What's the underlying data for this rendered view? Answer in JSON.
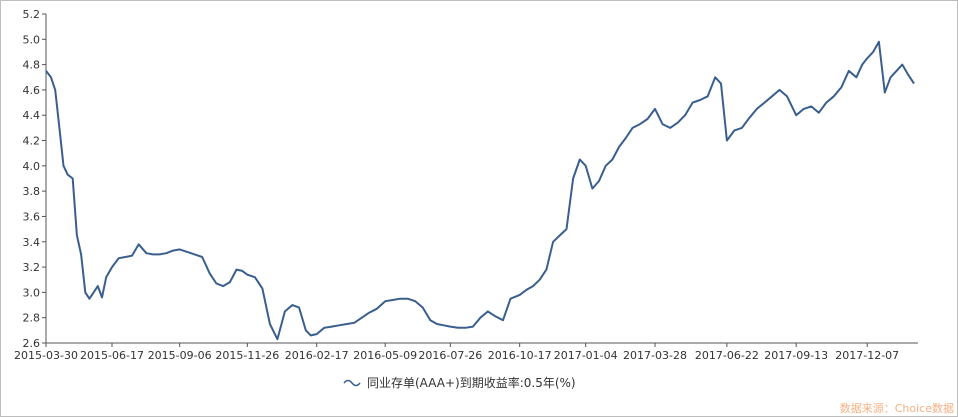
{
  "chart_data": {
    "type": "line",
    "title": "",
    "xlabel": "",
    "ylabel": "",
    "ylim": [
      2.6,
      5.2
    ],
    "y_ticks": [
      "2.6",
      "2.8",
      "3.0",
      "3.2",
      "3.4",
      "3.6",
      "3.8",
      "4.0",
      "4.2",
      "4.4",
      "4.6",
      "4.8",
      "5.0",
      "5.2"
    ],
    "x_tick_labels": [
      "2015-03-30",
      "2015-06-17",
      "2015-09-06",
      "2015-11-26",
      "2016-02-17",
      "2016-05-09",
      "2016-07-26",
      "2016-10-17",
      "2017-01-04",
      "2017-03-28",
      "2017-06-22",
      "2017-09-13",
      "2017-12-07"
    ],
    "grid": false,
    "legend_position": "bottom-center",
    "series": [
      {
        "name": "同业存单(AAA+)到期收益率:0.5年(%)",
        "color": "#3a5f8f",
        "x": [
          "2015-03-30",
          "2015-04-05",
          "2015-04-10",
          "2015-04-15",
          "2015-04-20",
          "2015-04-25",
          "2015-05-01",
          "2015-05-06",
          "2015-05-11",
          "2015-05-16",
          "2015-05-21",
          "2015-05-26",
          "2015-05-31",
          "2015-06-05",
          "2015-06-10",
          "2015-06-17",
          "2015-06-25",
          "2015-07-03",
          "2015-07-11",
          "2015-07-19",
          "2015-07-28",
          "2015-08-05",
          "2015-08-13",
          "2015-08-21",
          "2015-08-29",
          "2015-09-06",
          "2015-09-15",
          "2015-09-24",
          "2015-10-03",
          "2015-10-12",
          "2015-10-20",
          "2015-10-28",
          "2015-11-05",
          "2015-11-13",
          "2015-11-20",
          "2015-11-26",
          "2015-12-05",
          "2015-12-14",
          "2015-12-23",
          "2016-01-01",
          "2016-01-10",
          "2016-01-19",
          "2016-01-27",
          "2016-02-04",
          "2016-02-10",
          "2016-02-17",
          "2016-02-26",
          "2016-03-06",
          "2016-03-15",
          "2016-03-24",
          "2016-04-02",
          "2016-04-11",
          "2016-04-20",
          "2016-04-29",
          "2016-05-09",
          "2016-05-18",
          "2016-05-27",
          "2016-06-05",
          "2016-06-14",
          "2016-06-23",
          "2016-07-02",
          "2016-07-10",
          "2016-07-18",
          "2016-07-26",
          "2016-08-04",
          "2016-08-13",
          "2016-08-22",
          "2016-08-31",
          "2016-09-09",
          "2016-09-18",
          "2016-09-27",
          "2016-10-06",
          "2016-10-17",
          "2016-10-25",
          "2016-11-02",
          "2016-11-10",
          "2016-11-18",
          "2016-11-26",
          "2016-12-04",
          "2016-12-12",
          "2016-12-20",
          "2016-12-28",
          "2017-01-04",
          "2017-01-12",
          "2017-01-20",
          "2017-01-28",
          "2017-02-05",
          "2017-02-13",
          "2017-02-21",
          "2017-03-01",
          "2017-03-10",
          "2017-03-19",
          "2017-03-28",
          "2017-04-06",
          "2017-04-15",
          "2017-04-24",
          "2017-05-03",
          "2017-05-12",
          "2017-05-21",
          "2017-05-30",
          "2017-06-08",
          "2017-06-15",
          "2017-06-22",
          "2017-07-01",
          "2017-07-10",
          "2017-07-19",
          "2017-07-28",
          "2017-08-06",
          "2017-08-15",
          "2017-08-24",
          "2017-09-02",
          "2017-09-13",
          "2017-09-22",
          "2017-10-01",
          "2017-10-10",
          "2017-10-19",
          "2017-10-28",
          "2017-11-06",
          "2017-11-15",
          "2017-11-24",
          "2017-12-01",
          "2017-12-07",
          "2017-12-14",
          "2017-12-21",
          "2017-12-28",
          "2018-01-04",
          "2018-01-11",
          "2018-01-18",
          "2018-01-25",
          "2018-02-01"
        ],
        "values": [
          4.75,
          4.7,
          4.6,
          4.3,
          4.0,
          3.93,
          3.9,
          3.45,
          3.3,
          3.0,
          2.95,
          3.0,
          3.05,
          2.96,
          3.12,
          3.2,
          3.27,
          3.28,
          3.29,
          3.38,
          3.31,
          3.3,
          3.3,
          3.31,
          3.33,
          3.34,
          3.32,
          3.3,
          3.28,
          3.15,
          3.07,
          3.05,
          3.08,
          3.18,
          3.17,
          3.14,
          3.12,
          3.03,
          2.75,
          2.63,
          2.85,
          2.9,
          2.88,
          2.7,
          2.66,
          2.67,
          2.72,
          2.73,
          2.74,
          2.75,
          2.76,
          2.8,
          2.84,
          2.87,
          2.93,
          2.94,
          2.95,
          2.95,
          2.93,
          2.88,
          2.78,
          2.75,
          2.74,
          2.73,
          2.72,
          2.72,
          2.73,
          2.8,
          2.85,
          2.81,
          2.78,
          2.95,
          2.98,
          3.02,
          3.05,
          3.1,
          3.18,
          3.4,
          3.45,
          3.5,
          3.9,
          4.05,
          4.0,
          3.82,
          3.88,
          4.0,
          4.05,
          4.15,
          4.22,
          4.3,
          4.33,
          4.37,
          4.45,
          4.33,
          4.3,
          4.34,
          4.4,
          4.5,
          4.52,
          4.55,
          4.7,
          4.65,
          4.2,
          4.28,
          4.3,
          4.38,
          4.45,
          4.5,
          4.55,
          4.6,
          4.55,
          4.4,
          4.45,
          4.47,
          4.42,
          4.5,
          4.55,
          4.62,
          4.75,
          4.7,
          4.8,
          4.85,
          4.9,
          4.98,
          4.58,
          4.7,
          4.75,
          4.8,
          4.72,
          4.65
        ]
      }
    ]
  },
  "source_text": "数据来源：Choice数据"
}
